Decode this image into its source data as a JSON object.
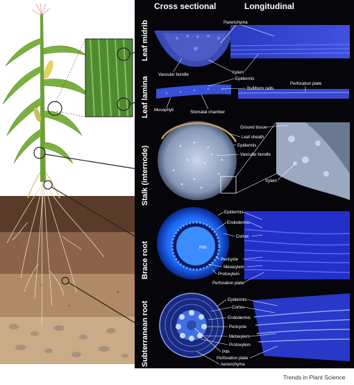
{
  "headers": {
    "cross": "Cross sectional",
    "longitudinal": "Longitudinal"
  },
  "sections": {
    "leaf_midrib": "Leaf midrib",
    "leaf_lamina": "Leaf lamina",
    "stalk": "Stalk (internode)",
    "brace_root": "Brace root",
    "subterranean_root": "Subterranean root"
  },
  "labels": {
    "midrib_parenchyma": "Parenchyma",
    "midrib_vascular_bundle": "Vascular bundle",
    "midrib_xylem": "Xylem",
    "lamina_epidermis": "Epidermis",
    "lamina_bulliform": "Bulliform cells",
    "lamina_perforation": "Perforation plate",
    "lamina_mesophyll": "Mesophyll",
    "lamina_stomatal": "Stomatal chamber",
    "stalk_ground_tissue": "Ground tissue",
    "stalk_leaf_sheath": "Leaf sheath",
    "stalk_epidermis": "Epidermis",
    "stalk_vascular_bundle": "Vascular bundle",
    "stalk_xylem": "Xylem",
    "brace_epidermis": "Epidermis",
    "brace_endodermis": "Endodermis",
    "brace_cortex": "Cortex",
    "brace_pith": "Pith",
    "brace_pericycle": "Pericycle",
    "brace_metaxylem": "Metaxylem",
    "brace_protoxylem": "Protoxylem",
    "brace_perforation": "Perforation plate",
    "sub_epidermis": "Epidermis",
    "sub_cortex": "Cortex",
    "sub_endodermis": "Endodermis",
    "sub_pericycle": "Pericycle",
    "sub_metaxylem": "Metaxylem",
    "sub_protoxylem": "Protoxylem",
    "sub_pith": "Pith",
    "sub_perforation": "Perforation plate",
    "sub_aerenchyma": "Aerenchyma"
  },
  "footer": {
    "journal": "Trends in Plant Science"
  }
}
